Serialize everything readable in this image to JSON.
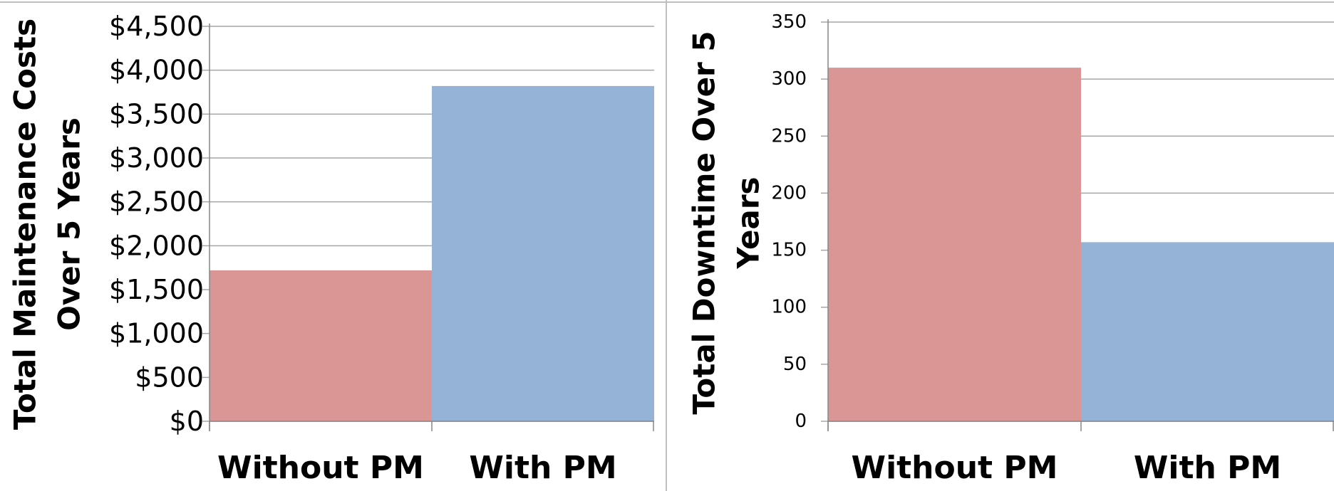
{
  "chart_data": [
    {
      "type": "bar",
      "categories": [
        "Without PM",
        "With PM"
      ],
      "values": [
        1720,
        3820
      ],
      "colors": [
        "#d99694",
        "#95b3d7"
      ],
      "ylabel": "Total Maintenance Costs Over 5 Years",
      "ylabel_lines": [
        "Total Maintenance Costs",
        "Over 5 Years"
      ],
      "ylim": [
        0,
        4500
      ],
      "yticks": [
        0,
        500,
        1000,
        1500,
        2000,
        2500,
        3000,
        3500,
        4000,
        4500
      ],
      "ytick_labels": [
        "$0",
        "$500",
        "$1,000",
        "$1,500",
        "$2,000",
        "$2,500",
        "$3,000",
        "$3,500",
        "$4,000",
        "$4,500"
      ],
      "grid": true,
      "legend": "none"
    },
    {
      "type": "bar",
      "categories": [
        "Without PM",
        "With PM"
      ],
      "values": [
        310,
        157
      ],
      "colors": [
        "#d99694",
        "#95b3d7"
      ],
      "ylabel": "Total Downtime Over 5 Years",
      "ylabel_lines": [
        "Total Downtime Over 5",
        "Years"
      ],
      "ylim": [
        0,
        350
      ],
      "yticks": [
        0,
        50,
        100,
        150,
        200,
        250,
        300,
        350
      ],
      "ytick_labels": [
        "0",
        "50",
        "100",
        "150",
        "200",
        "250",
        "300",
        "350"
      ],
      "grid": true,
      "legend": "none"
    }
  ]
}
